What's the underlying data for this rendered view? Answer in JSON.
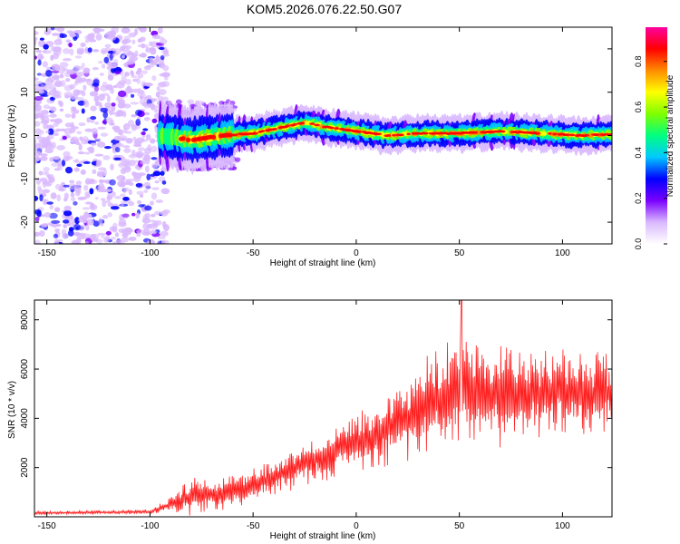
{
  "title": "KOM5.2026.076.22.50.G07",
  "chart_data": [
    {
      "type": "heatmap",
      "xlabel": "Height of straight line (km)",
      "ylabel": "Frequency (Hz)",
      "xlim": [
        -156,
        124
      ],
      "ylim": [
        -25,
        25
      ],
      "xticks": [
        -150,
        -100,
        -50,
        0,
        50,
        100
      ],
      "yticks": [
        -20,
        -10,
        0,
        10,
        20
      ],
      "xtick_labels": [
        "-150",
        "-100",
        "-50",
        "0",
        "50",
        "100"
      ],
      "ytick_labels": [
        "-20",
        "-10",
        "0",
        "10",
        "20"
      ],
      "colorbar": {
        "label": "Normalized spectral amplitude",
        "range": [
          0,
          0.95
        ],
        "ticks": [
          0.0,
          0.2,
          0.4,
          0.6,
          0.8
        ],
        "tick_labels": [
          "0.0",
          "0.2",
          "0.4",
          "0.6",
          "0.8"
        ],
        "colors": [
          "#ffffff",
          "#d9b8ff",
          "#7a00ff",
          "#0000ff",
          "#00c8ff",
          "#00ff80",
          "#7fff00",
          "#ffff00",
          "#ff8c00",
          "#ff0000",
          "#ff00a0"
        ]
      },
      "ridge": {
        "x": [
          -95,
          -80,
          -65,
          -50,
          -35,
          -25,
          -15,
          0,
          15,
          30,
          50,
          70,
          90,
          110,
          124
        ],
        "frequency": [
          0,
          -1,
          0,
          0.5,
          2,
          3,
          2,
          1,
          0,
          0.5,
          0.5,
          1,
          0.5,
          0,
          0.3
        ]
      },
      "noise_region_x": [
        -156,
        -92
      ]
    },
    {
      "type": "line",
      "xlabel": "Height of straight line (km)",
      "ylabel": "SNR (10 * v/v)",
      "xlim": [
        -156,
        124
      ],
      "ylim": [
        0,
        8800
      ],
      "xticks": [
        -150,
        -100,
        -50,
        0,
        50,
        100
      ],
      "yticks": [
        2000,
        4000,
        6000,
        8000
      ],
      "xtick_labels": [
        "-150",
        "-100",
        "-50",
        "0",
        "50",
        "100"
      ],
      "ytick_labels": [
        "2000",
        "4000",
        "6000",
        "8000"
      ],
      "color": "#ff2020",
      "envelope": {
        "x": [
          -156,
          -100,
          -90,
          -80,
          -70,
          -60,
          -50,
          -40,
          -30,
          -20,
          -10,
          0,
          10,
          20,
          30,
          40,
          50,
          60,
          70,
          80,
          90,
          100,
          110,
          124
        ],
        "mean": [
          150,
          200,
          500,
          800,
          900,
          1000,
          1300,
          1600,
          2000,
          2300,
          2700,
          3000,
          3300,
          3800,
          4300,
          4800,
          5000,
          5000,
          4900,
          5100,
          5000,
          5100,
          5000,
          5000
        ],
        "amplitude": [
          80,
          90,
          300,
          800,
          700,
          700,
          700,
          900,
          900,
          1000,
          1100,
          1300,
          1400,
          1600,
          2000,
          2100,
          2400,
          2200,
          2100,
          1900,
          1800,
          1700,
          1700,
          1700
        ]
      },
      "peak": {
        "x": 51,
        "y": 8800
      }
    }
  ]
}
